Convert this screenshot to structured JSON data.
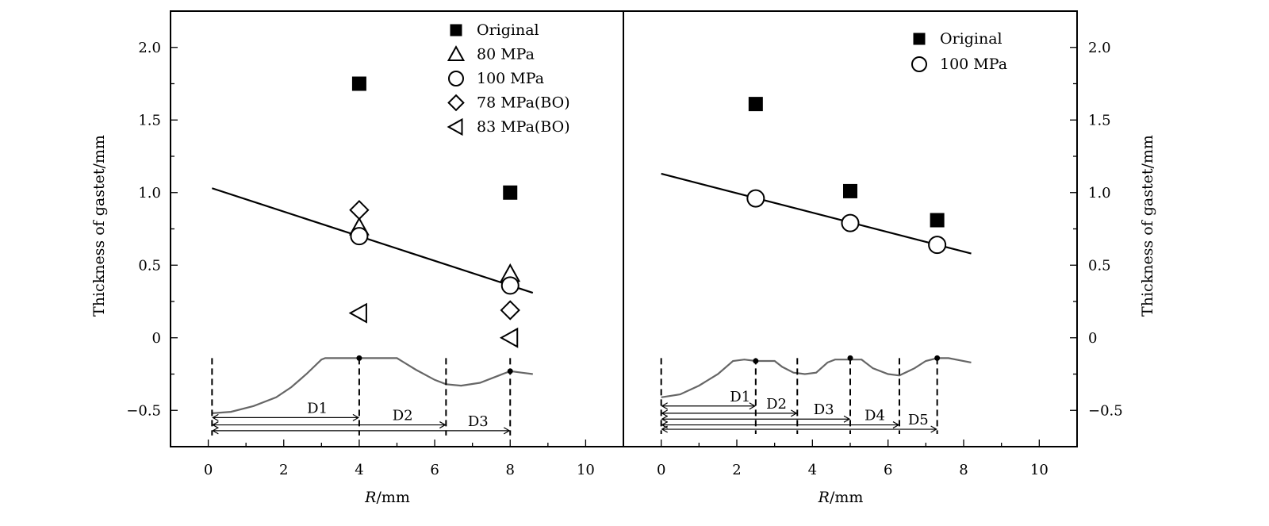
{
  "chart_data": [
    {
      "type": "scatter",
      "xlabel_italic": "R",
      "xlabel_unit": "/mm",
      "ylabel": "Thickness of gastet/mm",
      "xlim": [
        -1,
        11
      ],
      "ylim": [
        -0.75,
        2.25
      ],
      "x_ticks": [
        0,
        2,
        4,
        6,
        8,
        10
      ],
      "x_tick_labels": [
        "0",
        "2",
        "4",
        "6",
        "8",
        "10"
      ],
      "y_ticks": [
        -0.5,
        0,
        0.5,
        1.0,
        1.5,
        2.0
      ],
      "y_tick_labels": [
        "−0.5",
        "0",
        "0.5",
        "1.0",
        "1.5",
        "2.0"
      ],
      "legend_position": "top-right",
      "series": [
        {
          "name": "Original",
          "marker": "filled-square",
          "points": [
            [
              4,
              1.75
            ],
            [
              8,
              1.0
            ]
          ]
        },
        {
          "name": "80 MPa",
          "marker": "open-triangle-up",
          "points": [
            [
              4,
              0.76
            ],
            [
              8,
              0.44
            ]
          ]
        },
        {
          "name": "100 MPa",
          "marker": "open-circle",
          "points": [
            [
              4,
              0.7
            ],
            [
              8,
              0.36
            ]
          ]
        },
        {
          "name": "78 MPa(BO)",
          "marker": "open-diamond",
          "points": [
            [
              4,
              0.88
            ],
            [
              8,
              0.19
            ]
          ]
        },
        {
          "name": "83 MPa(BO)",
          "marker": "open-triangle-left",
          "points": [
            [
              4,
              0.17
            ],
            [
              8,
              0.0
            ]
          ]
        }
      ],
      "fit_line": {
        "x": [
          0.1,
          8.6
        ],
        "y": [
          1.03,
          0.31
        ]
      },
      "profile": [
        [
          0.1,
          -0.52
        ],
        [
          0.6,
          -0.51
        ],
        [
          1.2,
          -0.47
        ],
        [
          1.8,
          -0.41
        ],
        [
          2.2,
          -0.34
        ],
        [
          2.6,
          -0.25
        ],
        [
          3.0,
          -0.15
        ],
        [
          3.1,
          -0.14
        ],
        [
          5.0,
          -0.14
        ],
        [
          5.5,
          -0.22
        ],
        [
          6.0,
          -0.29
        ],
        [
          6.3,
          -0.32
        ],
        [
          6.7,
          -0.33
        ],
        [
          7.2,
          -0.31
        ],
        [
          7.7,
          -0.26
        ],
        [
          8.0,
          -0.23
        ],
        [
          8.3,
          -0.24
        ],
        [
          8.6,
          -0.25
        ]
      ],
      "dividers": [
        0.1,
        4.0,
        6.3,
        8.0
      ],
      "profile_dots": [
        [
          4.0,
          -0.14
        ],
        [
          8.0,
          -0.23
        ]
      ],
      "dimensions": [
        {
          "label": "D1",
          "to": 4.0,
          "y": -0.55
        },
        {
          "label": "D2",
          "to": 6.3,
          "y": -0.6
        },
        {
          "label": "D3",
          "to": 8.0,
          "y": -0.64
        }
      ]
    },
    {
      "type": "scatter",
      "xlabel_italic": "R",
      "xlabel_unit": "/mm",
      "ylabel": "Thickness of gastet/mm",
      "xlim": [
        -1,
        11
      ],
      "ylim": [
        -0.75,
        2.25
      ],
      "x_ticks": [
        0,
        2,
        4,
        6,
        8,
        10
      ],
      "x_tick_labels": [
        "0",
        "2",
        "4",
        "6",
        "8",
        "10"
      ],
      "y_ticks": [
        -0.5,
        0,
        0.5,
        1.0,
        1.5,
        2.0
      ],
      "y_tick_labels": [
        "−0.5",
        "0",
        "0.5",
        "1.0",
        "1.5",
        "2.0"
      ],
      "legend_position": "top-right",
      "series": [
        {
          "name": "Original",
          "marker": "filled-square",
          "points": [
            [
              2.5,
              1.61
            ],
            [
              5.0,
              1.01
            ],
            [
              7.3,
              0.81
            ]
          ]
        },
        {
          "name": "100 MPa",
          "marker": "open-circle",
          "points": [
            [
              2.5,
              0.96
            ],
            [
              5.0,
              0.79
            ],
            [
              7.3,
              0.64
            ]
          ]
        }
      ],
      "fit_line": {
        "x": [
          0.0,
          8.2
        ],
        "y": [
          1.13,
          0.58
        ]
      },
      "profile": [
        [
          0.0,
          -0.41
        ],
        [
          0.5,
          -0.39
        ],
        [
          1.0,
          -0.33
        ],
        [
          1.5,
          -0.25
        ],
        [
          1.9,
          -0.16
        ],
        [
          2.2,
          -0.15
        ],
        [
          2.5,
          -0.16
        ],
        [
          3.0,
          -0.16
        ],
        [
          3.2,
          -0.2
        ],
        [
          3.5,
          -0.24
        ],
        [
          3.8,
          -0.25
        ],
        [
          4.1,
          -0.24
        ],
        [
          4.4,
          -0.17
        ],
        [
          4.6,
          -0.15
        ],
        [
          5.3,
          -0.15
        ],
        [
          5.6,
          -0.21
        ],
        [
          6.0,
          -0.25
        ],
        [
          6.3,
          -0.26
        ],
        [
          6.7,
          -0.21
        ],
        [
          7.0,
          -0.16
        ],
        [
          7.3,
          -0.14
        ],
        [
          7.6,
          -0.14
        ],
        [
          8.2,
          -0.17
        ]
      ],
      "dividers": [
        0.0,
        2.5,
        3.6,
        5.0,
        6.3,
        7.3
      ],
      "profile_dots": [
        [
          2.5,
          -0.16
        ],
        [
          5.0,
          -0.14
        ],
        [
          7.3,
          -0.14
        ]
      ],
      "dimensions": [
        {
          "label": "D1",
          "to": 2.5,
          "y": -0.47
        },
        {
          "label": "D2",
          "to": 3.6,
          "y": -0.52
        },
        {
          "label": "D3",
          "to": 5.0,
          "y": -0.56
        },
        {
          "label": "D4",
          "to": 6.3,
          "y": -0.6
        },
        {
          "label": "D5",
          "to": 7.3,
          "y": -0.63
        }
      ]
    }
  ]
}
